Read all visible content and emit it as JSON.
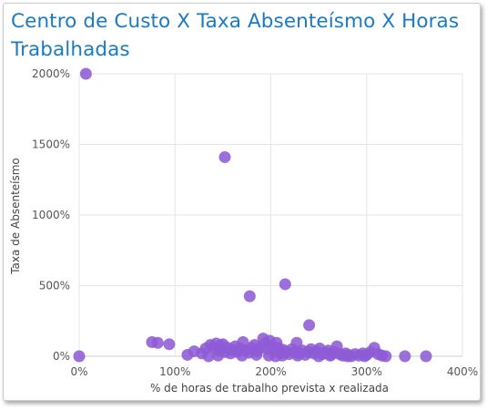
{
  "card": {
    "title": "Centro de Custo X Taxa Absenteísmo X Horas Trabalhadas"
  },
  "chart_data": {
    "type": "scatter",
    "title": "Centro de Custo X Taxa Absenteísmo X Horas Trabalhadas",
    "xlabel": "% de horas de trabalho prevista x realizada",
    "ylabel": "Taxa de Absenteísmo",
    "xlim": [
      0,
      400
    ],
    "ylim": [
      0,
      2000
    ],
    "x_ticks": [
      "0%",
      "100%",
      "200%",
      "300%",
      "400%"
    ],
    "y_ticks": [
      "0%",
      "500%",
      "1000%",
      "1500%",
      "2000%"
    ],
    "grid": true,
    "legend": "none",
    "marker_color": "#8e5bd6",
    "points": [
      {
        "x": 0,
        "y": 0
      },
      {
        "x": 7,
        "y": 2000
      },
      {
        "x": 152,
        "y": 1410
      },
      {
        "x": 178,
        "y": 425
      },
      {
        "x": 215,
        "y": 510
      },
      {
        "x": 240,
        "y": 220
      },
      {
        "x": 76,
        "y": 100
      },
      {
        "x": 82,
        "y": 95
      },
      {
        "x": 94,
        "y": 85
      },
      {
        "x": 113,
        "y": 10
      },
      {
        "x": 120,
        "y": 35
      },
      {
        "x": 128,
        "y": 20
      },
      {
        "x": 132,
        "y": 55
      },
      {
        "x": 137,
        "y": 80
      },
      {
        "x": 140,
        "y": 65
      },
      {
        "x": 143,
        "y": 90
      },
      {
        "x": 146,
        "y": 40
      },
      {
        "x": 148,
        "y": 75
      },
      {
        "x": 150,
        "y": 85
      },
      {
        "x": 152,
        "y": 30
      },
      {
        "x": 155,
        "y": 60
      },
      {
        "x": 158,
        "y": 20
      },
      {
        "x": 160,
        "y": 45
      },
      {
        "x": 163,
        "y": 70
      },
      {
        "x": 165,
        "y": 30
      },
      {
        "x": 168,
        "y": 55
      },
      {
        "x": 171,
        "y": 100
      },
      {
        "x": 174,
        "y": 40
      },
      {
        "x": 177,
        "y": 25
      },
      {
        "x": 180,
        "y": 60
      },
      {
        "x": 183,
        "y": 80
      },
      {
        "x": 186,
        "y": 35
      },
      {
        "x": 189,
        "y": 60
      },
      {
        "x": 192,
        "y": 125
      },
      {
        "x": 194,
        "y": 90
      },
      {
        "x": 197,
        "y": 50
      },
      {
        "x": 199,
        "y": 110
      },
      {
        "x": 201,
        "y": 75
      },
      {
        "x": 203,
        "y": 40
      },
      {
        "x": 206,
        "y": 95
      },
      {
        "x": 208,
        "y": 60
      },
      {
        "x": 210,
        "y": 20
      },
      {
        "x": 213,
        "y": 45
      },
      {
        "x": 216,
        "y": 30
      },
      {
        "x": 219,
        "y": 15
      },
      {
        "x": 222,
        "y": 50
      },
      {
        "x": 225,
        "y": 30
      },
      {
        "x": 227,
        "y": 95
      },
      {
        "x": 230,
        "y": 20
      },
      {
        "x": 233,
        "y": 40
      },
      {
        "x": 236,
        "y": 10
      },
      {
        "x": 239,
        "y": 30
      },
      {
        "x": 242,
        "y": 50
      },
      {
        "x": 245,
        "y": 20
      },
      {
        "x": 248,
        "y": 35
      },
      {
        "x": 251,
        "y": 55
      },
      {
        "x": 254,
        "y": 15
      },
      {
        "x": 257,
        "y": 25
      },
      {
        "x": 260,
        "y": 40
      },
      {
        "x": 263,
        "y": 10
      },
      {
        "x": 266,
        "y": 30
      },
      {
        "x": 269,
        "y": 70
      },
      {
        "x": 272,
        "y": 15
      },
      {
        "x": 275,
        "y": 5
      },
      {
        "x": 278,
        "y": 20
      },
      {
        "x": 281,
        "y": 10
      },
      {
        "x": 284,
        "y": 0
      },
      {
        "x": 288,
        "y": 15
      },
      {
        "x": 292,
        "y": 5
      },
      {
        "x": 296,
        "y": 20
      },
      {
        "x": 300,
        "y": 10
      },
      {
        "x": 304,
        "y": 30
      },
      {
        "x": 308,
        "y": 60
      },
      {
        "x": 312,
        "y": 15
      },
      {
        "x": 316,
        "y": 5
      },
      {
        "x": 320,
        "y": 0
      },
      {
        "x": 340,
        "y": 0
      },
      {
        "x": 362,
        "y": 0
      },
      {
        "x": 135,
        "y": 0
      },
      {
        "x": 145,
        "y": 5
      },
      {
        "x": 170,
        "y": 5
      },
      {
        "x": 185,
        "y": 10
      },
      {
        "x": 198,
        "y": 5
      },
      {
        "x": 205,
        "y": 0
      },
      {
        "x": 212,
        "y": 5
      },
      {
        "x": 228,
        "y": 5
      },
      {
        "x": 250,
        "y": 0
      },
      {
        "x": 262,
        "y": 5
      },
      {
        "x": 280,
        "y": 0
      },
      {
        "x": 298,
        "y": 0
      }
    ]
  }
}
